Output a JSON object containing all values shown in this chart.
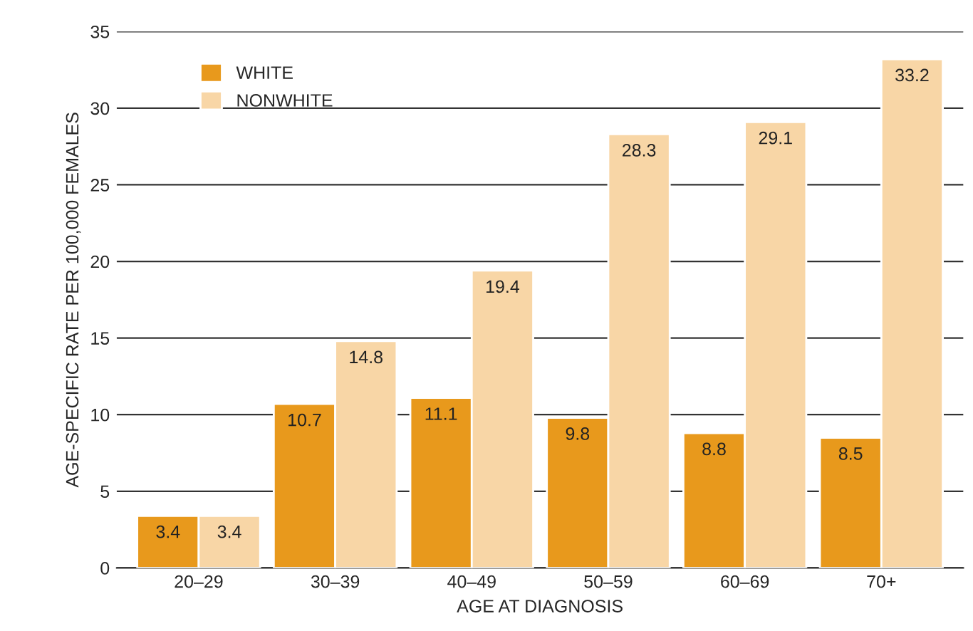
{
  "chart_data": {
    "type": "bar",
    "xlabel": "AGE AT DIAGNOSIS",
    "ylabel": "AGE-SPECIFIC RATE PER 100,000 FEMALES",
    "categories": [
      "20–29",
      "30–39",
      "40–49",
      "50–59",
      "60–69",
      "70+"
    ],
    "series": [
      {
        "name": "WHITE",
        "color": "#e8991c",
        "values": [
          3.4,
          10.7,
          11.1,
          9.8,
          8.8,
          8.5
        ]
      },
      {
        "name": "NONWHITE",
        "color": "#f8d6a6",
        "values": [
          3.4,
          14.8,
          19.4,
          28.3,
          29.1,
          33.2
        ]
      }
    ],
    "ylim": [
      0,
      35
    ],
    "yticks": [
      0,
      5,
      10,
      15,
      20,
      25,
      30,
      35
    ],
    "grid": "y",
    "legend": "top left",
    "data_labels": true
  }
}
